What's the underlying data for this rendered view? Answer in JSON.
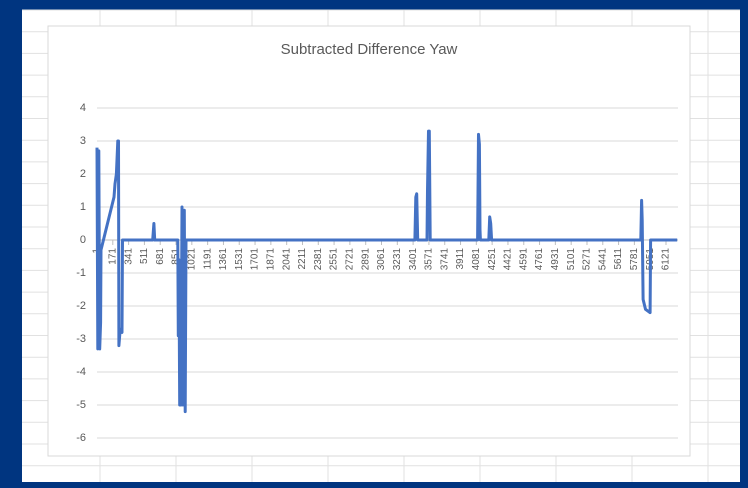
{
  "chart_data": {
    "type": "line",
    "title": "Subtracted Difference Yaw",
    "x": [
      1,
      10,
      20,
      30,
      40,
      44,
      184,
      195,
      210,
      225,
      232,
      237,
      250,
      270,
      275,
      600,
      613,
      622,
      870,
      875,
      882,
      890,
      905,
      915,
      925,
      940,
      950,
      958,
      3420,
      3430,
      3440,
      3450,
      3550,
      3556,
      3567,
      3575,
      3585,
      4095,
      4104,
      4114,
      4120,
      4125,
      4215,
      4225,
      4235,
      4245,
      5850,
      5858,
      5865,
      5875,
      5900,
      5950,
      5955,
      6241
    ],
    "values": [
      2.8,
      -3.3,
      2.7,
      -3.3,
      -2.5,
      -0.3,
      1.3,
      1.7,
      2.0,
      3.0,
      3.0,
      -3.2,
      -2.7,
      -2.8,
      0,
      0,
      0.5,
      0,
      0,
      -2.9,
      -0.6,
      -5.0,
      -5.0,
      1.0,
      -5.0,
      0.9,
      -5.2,
      0,
      0,
      1.3,
      1.4,
      0,
      0,
      1.5,
      3.3,
      3.3,
      0,
      0,
      3.2,
      2.9,
      0.3,
      0,
      0,
      0.7,
      0.5,
      0,
      0,
      1.2,
      0.6,
      -1.8,
      -2.1,
      -2.2,
      0,
      0
    ],
    "color": "#4472c4",
    "xlim": [
      1,
      6250
    ],
    "xticks": [
      1,
      171,
      341,
      511,
      681,
      851,
      1021,
      1191,
      1361,
      1531,
      1701,
      1871,
      2041,
      2211,
      2381,
      2551,
      2721,
      2891,
      3061,
      3231,
      3401,
      3571,
      3741,
      3911,
      4081,
      4251,
      4421,
      4591,
      4761,
      4931,
      5101,
      5271,
      5441,
      5611,
      5781,
      5951,
      6121
    ],
    "ylim": [
      -6,
      4
    ],
    "yticks": [
      -6,
      -5,
      -4,
      -3,
      -2,
      -1,
      0,
      1,
      2,
      3,
      4
    ],
    "grid": true
  }
}
